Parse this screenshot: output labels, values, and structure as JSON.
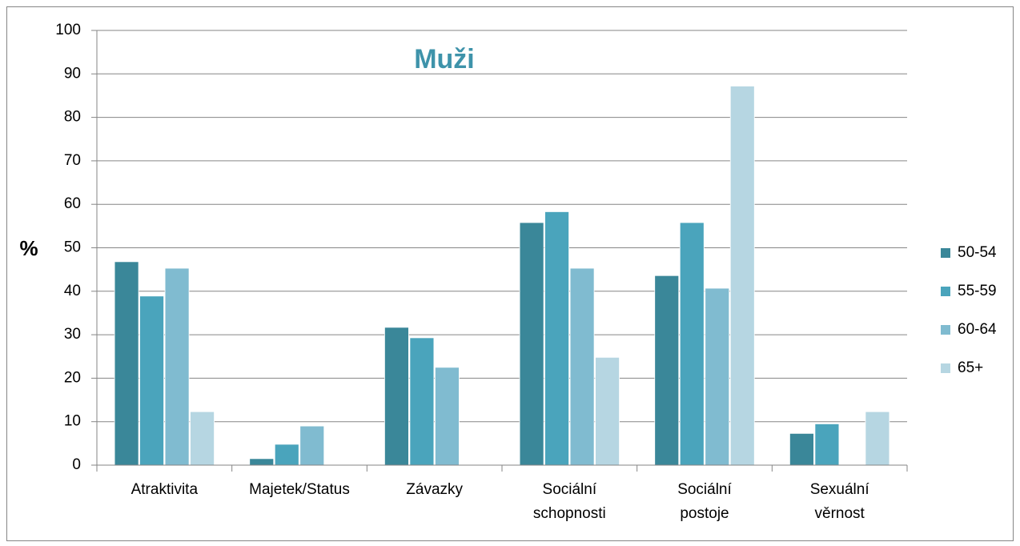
{
  "chart_data": {
    "type": "bar",
    "title": "Muži",
    "y_label": "%",
    "categories": [
      [
        "Atraktivita"
      ],
      [
        "Majetek/Status"
      ],
      [
        "Závazky"
      ],
      [
        "Sociální",
        "schopnosti"
      ],
      [
        "Sociální",
        "postoje"
      ],
      [
        "Sexuální",
        "věrnost"
      ]
    ],
    "series": [
      {
        "name": "50-54",
        "color": "#3a8799",
        "values": [
          46.8,
          1.5,
          31.7,
          55.8,
          43.6,
          7.3
        ]
      },
      {
        "name": "55-59",
        "color": "#4aa4bc",
        "values": [
          38.9,
          4.8,
          29.3,
          58.3,
          55.8,
          9.5
        ]
      },
      {
        "name": "60-64",
        "color": "#80bbd0",
        "values": [
          45.3,
          9.0,
          22.5,
          45.3,
          40.7,
          0
        ]
      },
      {
        "name": "65+",
        "color": "#b6d6e2",
        "values": [
          12.3,
          0,
          0,
          24.8,
          87.2,
          12.3
        ]
      }
    ],
    "ylim": [
      0,
      100
    ],
    "yticks": [
      0,
      10,
      20,
      30,
      40,
      50,
      60,
      70,
      80,
      90,
      100
    ],
    "grid": true,
    "legend": "right"
  }
}
